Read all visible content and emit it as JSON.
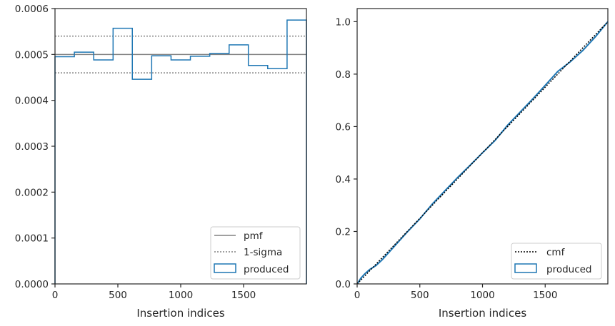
{
  "chart_data": [
    {
      "type": "step",
      "title": "",
      "xlabel": "Insertion indices",
      "ylabel": "",
      "xlim": [
        0,
        2000
      ],
      "ylim": [
        0,
        0.0006
      ],
      "xticks": [
        0,
        500,
        1000,
        1500
      ],
      "xtick_labels": [
        "0",
        "500",
        "1000",
        "1500"
      ],
      "yticks": [
        0,
        0.0001,
        0.0002,
        0.0003,
        0.0004,
        0.0005,
        0.0006
      ],
      "ytick_labels": [
        "0.0000",
        "0.0001",
        "0.0002",
        "0.0003",
        "0.0004",
        "0.0005",
        "0.0006"
      ],
      "pmf": 0.0005,
      "sigma_band": [
        0.00046,
        0.00054
      ],
      "histogram": {
        "bin_edges": [
          0,
          154,
          308,
          462,
          615,
          769,
          923,
          1077,
          1231,
          1385,
          1538,
          1692,
          1846,
          2000
        ],
        "values": [
          0.000495,
          0.000505,
          0.000488,
          0.000557,
          0.000446,
          0.000497,
          0.000488,
          0.000496,
          0.000502,
          0.000521,
          0.000476,
          0.000469,
          0.000575
        ]
      },
      "legend": {
        "position": "lower right",
        "entries": [
          {
            "label": "pmf",
            "style": "solid",
            "color": "#808080"
          },
          {
            "label": "1-sigma",
            "style": "dotted",
            "color": "#808080"
          },
          {
            "label": "produced",
            "style": "box",
            "color": "#1f77b4"
          }
        ]
      }
    },
    {
      "type": "line",
      "title": "",
      "xlabel": "Insertion indices",
      "ylabel": "",
      "xlim": [
        0,
        2000
      ],
      "ylim": [
        0,
        1.05
      ],
      "xticks": [
        0,
        500,
        1000,
        1500
      ],
      "xtick_labels": [
        "0",
        "500",
        "1000",
        "1500"
      ],
      "yticks": [
        0,
        0.2,
        0.4,
        0.6,
        0.8,
        1.0
      ],
      "ytick_labels": [
        "0.0",
        "0.2",
        "0.4",
        "0.6",
        "0.8",
        "1.0"
      ],
      "cmf": {
        "x": [
          0,
          2000
        ],
        "y": [
          0,
          1.0
        ]
      },
      "produced": {
        "x": [
          0,
          30,
          60,
          100,
          150,
          200,
          300,
          400,
          500,
          600,
          700,
          800,
          900,
          1000,
          1100,
          1200,
          1300,
          1400,
          1500,
          1600,
          1700,
          1800,
          1900,
          2000
        ],
        "y": [
          0,
          0.022,
          0.038,
          0.055,
          0.07,
          0.092,
          0.145,
          0.198,
          0.248,
          0.305,
          0.355,
          0.405,
          0.452,
          0.5,
          0.547,
          0.605,
          0.655,
          0.705,
          0.757,
          0.81,
          0.847,
          0.89,
          0.942,
          1.0
        ]
      },
      "legend": {
        "position": "lower right",
        "entries": [
          {
            "label": "cmf",
            "style": "dotted",
            "color": "#000000"
          },
          {
            "label": "produced",
            "style": "box",
            "color": "#1f77b4"
          }
        ]
      }
    }
  ]
}
